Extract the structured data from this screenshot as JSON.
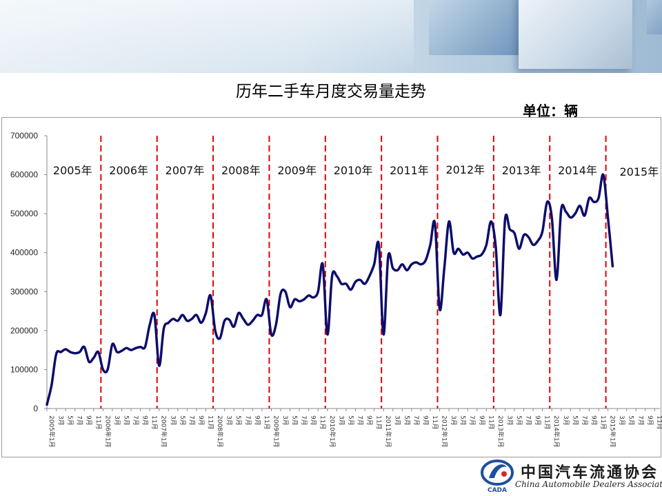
{
  "page": {
    "title": "历年二手车月度交易量走势",
    "unit": "单位：辆"
  },
  "logo": {
    "chinese_name": "中国汽车流通协会",
    "english_name": "China Automobile Dealers Association",
    "mark_text": "CADA"
  },
  "chart_data": {
    "type": "line",
    "title": "历年二手车月度交易量走势",
    "ylabel": "单位：辆",
    "ylim": [
      0,
      700000
    ],
    "yticks": [
      0,
      100000,
      200000,
      300000,
      400000,
      500000,
      600000,
      700000
    ],
    "ytick_labels": [
      "0",
      "100000",
      "200000",
      "300000",
      "400000",
      "500000",
      "600000",
      "700000"
    ],
    "grid": false,
    "legend": "none",
    "line_color": "#0d0d6b",
    "divider_color": "#e00000",
    "year_labels": [
      "2005年",
      "2006年",
      "2007年",
      "2008年",
      "2009年",
      "2010年",
      "2011年",
      "2012年",
      "2013年",
      "2014年",
      "2015年"
    ],
    "x_start_month": "2005-01",
    "x_total_months": 132,
    "year_start_tick_labels": [
      "2005年1月",
      "2006年1月",
      "2007年1月",
      "2008年1月",
      "2009年1月",
      "2010年1月",
      "2011年1月",
      "2012年1月",
      "2013年1月",
      "2014年1月",
      "2015年1月"
    ],
    "month_tick_labels": [
      "3月",
      "5月",
      "7月",
      "9月",
      "11月"
    ],
    "values": [
      10000,
      60000,
      140000,
      145000,
      152000,
      145000,
      142000,
      145000,
      158000,
      120000,
      130000,
      145000,
      100000,
      100000,
      165000,
      145000,
      148000,
      155000,
      150000,
      155000,
      158000,
      158000,
      215000,
      240000,
      110000,
      205000,
      220000,
      230000,
      225000,
      240000,
      225000,
      230000,
      240000,
      220000,
      245000,
      290000,
      200000,
      180000,
      225000,
      228000,
      210000,
      245000,
      230000,
      215000,
      225000,
      240000,
      240000,
      280000,
      190000,
      215000,
      295000,
      300000,
      260000,
      280000,
      275000,
      280000,
      290000,
      285000,
      300000,
      370000,
      190000,
      340000,
      340000,
      320000,
      320000,
      305000,
      325000,
      330000,
      320000,
      340000,
      370000,
      420000,
      190000,
      390000,
      360000,
      355000,
      370000,
      355000,
      370000,
      375000,
      370000,
      380000,
      420000,
      475000,
      255000,
      360000,
      480000,
      400000,
      410000,
      395000,
      400000,
      385000,
      390000,
      395000,
      420000,
      480000,
      415000,
      240000,
      485000,
      460000,
      450000,
      410000,
      445000,
      440000,
      420000,
      430000,
      455000,
      530000,
      490000,
      330000,
      510000,
      505000,
      490000,
      500000,
      520000,
      495000,
      540000,
      530000,
      540000,
      600000,
      490000,
      365000
    ]
  }
}
